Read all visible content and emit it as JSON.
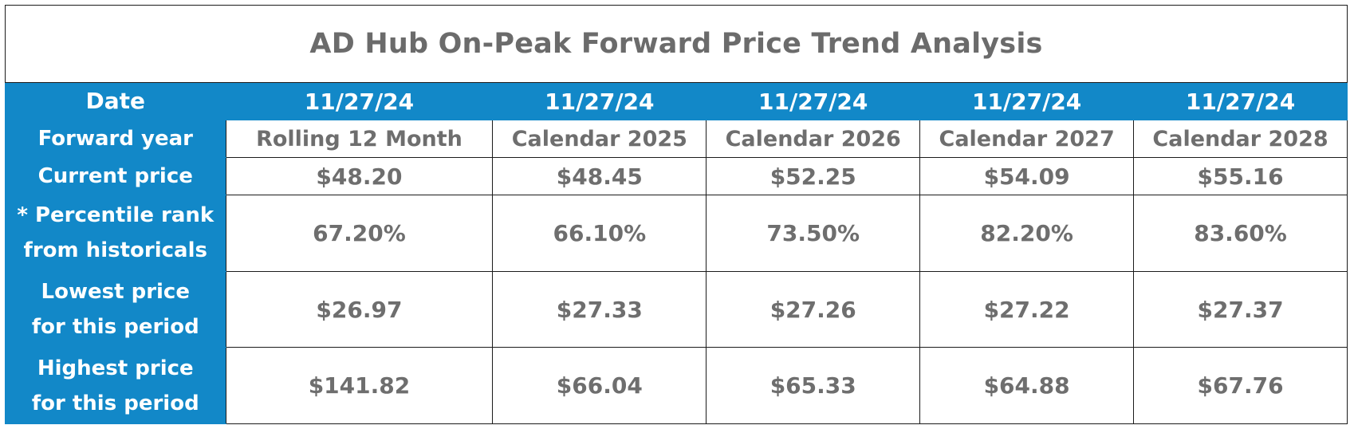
{
  "chart_data": {
    "type": "table",
    "title": "AD Hub On-Peak Forward Price Trend Analysis",
    "columns": [
      {
        "date": "11/27/24",
        "forward_year": "Rolling 12 Month",
        "current_price": "$48.20",
        "percentile_rank": "67.20%",
        "lowest_price": "$26.97",
        "highest_price": "$141.82"
      },
      {
        "date": "11/27/24",
        "forward_year": "Calendar 2025",
        "current_price": "$48.45",
        "percentile_rank": "66.10%",
        "lowest_price": "$27.33",
        "highest_price": "$66.04"
      },
      {
        "date": "11/27/24",
        "forward_year": "Calendar 2026",
        "current_price": "$52.25",
        "percentile_rank": "73.50%",
        "lowest_price": "$27.26",
        "highest_price": "$65.33"
      },
      {
        "date": "11/27/24",
        "forward_year": "Calendar 2027",
        "current_price": "$54.09",
        "percentile_rank": "82.20%",
        "lowest_price": "$27.22",
        "highest_price": "$64.88"
      },
      {
        "date": "11/27/24",
        "forward_year": "Calendar 2028",
        "current_price": "$55.16",
        "percentile_rank": "83.60%",
        "lowest_price": "$27.37",
        "highest_price": "$67.76"
      }
    ],
    "row_labels": {
      "date": "Date",
      "forward_year": "Forward year",
      "current_price": "Current price",
      "percentile_rank_line1": "* Percentile rank",
      "percentile_rank_line2": "from historicals",
      "lowest_price_line1": "Lowest price",
      "lowest_price_line2": "for this period",
      "highest_price_line1": "Highest price",
      "highest_price_line2": "for this period"
    }
  },
  "colors": {
    "header_blue": "#1288c8",
    "value_text": "#6e6e6e",
    "title_text": "#6b6b6b"
  }
}
